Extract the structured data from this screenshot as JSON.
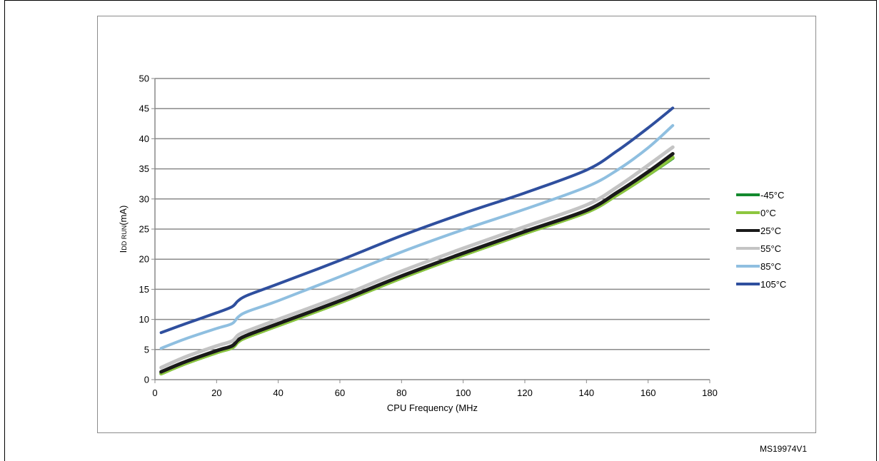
{
  "chart_data": {
    "type": "line",
    "xlabel": "CPU Frequency (MHz",
    "ylabel_main": "I",
    "ylabel_sub": "DD RUN",
    "ylabel_unit": "(mA)",
    "xlim": [
      0,
      180
    ],
    "ylim": [
      0,
      50
    ],
    "x_ticks": [
      0,
      20,
      40,
      60,
      80,
      100,
      120,
      140,
      160,
      180
    ],
    "y_ticks": [
      0,
      5,
      10,
      15,
      20,
      25,
      30,
      35,
      40,
      45,
      50
    ],
    "grid": true,
    "legend_position": "right",
    "series": [
      {
        "name": "-45°C",
        "color": "#138a2e",
        "width": 5,
        "points": [
          [
            2,
            1.0
          ],
          [
            10,
            2.7
          ],
          [
            20,
            4.5
          ],
          [
            25,
            5.3
          ],
          [
            27,
            6.3
          ],
          [
            30,
            7.1
          ],
          [
            40,
            9.0
          ],
          [
            60,
            12.8
          ],
          [
            80,
            16.9
          ],
          [
            100,
            20.7
          ],
          [
            120,
            24.3
          ],
          [
            140,
            27.8
          ],
          [
            150,
            30.7
          ],
          [
            160,
            34.0
          ],
          [
            168,
            36.8
          ]
        ]
      },
      {
        "name": "0°C",
        "color": "#8dc63f",
        "width": 5,
        "points": [
          [
            2,
            1.0
          ],
          [
            10,
            2.7
          ],
          [
            20,
            4.5
          ],
          [
            25,
            5.3
          ],
          [
            27,
            6.3
          ],
          [
            30,
            7.1
          ],
          [
            40,
            9.0
          ],
          [
            60,
            12.8
          ],
          [
            80,
            16.9
          ],
          [
            100,
            20.7
          ],
          [
            120,
            24.3
          ],
          [
            140,
            27.8
          ],
          [
            150,
            30.7
          ],
          [
            160,
            34.0
          ],
          [
            168,
            36.9
          ]
        ]
      },
      {
        "name": "25°C",
        "color": "#1a1a1a",
        "width": 5,
        "points": [
          [
            2,
            1.3
          ],
          [
            10,
            3.0
          ],
          [
            20,
            4.8
          ],
          [
            25,
            5.6
          ],
          [
            27,
            6.6
          ],
          [
            30,
            7.4
          ],
          [
            40,
            9.3
          ],
          [
            60,
            13.1
          ],
          [
            80,
            17.2
          ],
          [
            100,
            21.0
          ],
          [
            120,
            24.6
          ],
          [
            140,
            28.1
          ],
          [
            150,
            31.1
          ],
          [
            160,
            34.5
          ],
          [
            168,
            37.5
          ]
        ]
      },
      {
        "name": "55°C",
        "color": "#c4c4c4",
        "width": 5,
        "points": [
          [
            2,
            2.0
          ],
          [
            10,
            3.8
          ],
          [
            20,
            5.6
          ],
          [
            25,
            6.4
          ],
          [
            27,
            7.4
          ],
          [
            30,
            8.1
          ],
          [
            40,
            10.0
          ],
          [
            60,
            13.8
          ],
          [
            80,
            18.0
          ],
          [
            100,
            21.8
          ],
          [
            120,
            25.4
          ],
          [
            140,
            29.0
          ],
          [
            150,
            32.0
          ],
          [
            160,
            35.6
          ],
          [
            168,
            38.6
          ]
        ]
      },
      {
        "name": "85°C",
        "color": "#8fbfe0",
        "width": 4,
        "points": [
          [
            2,
            5.2
          ],
          [
            10,
            6.8
          ],
          [
            20,
            8.5
          ],
          [
            25,
            9.3
          ],
          [
            27,
            10.4
          ],
          [
            30,
            11.3
          ],
          [
            40,
            13.1
          ],
          [
            60,
            17.1
          ],
          [
            80,
            21.2
          ],
          [
            100,
            24.9
          ],
          [
            120,
            28.3
          ],
          [
            140,
            32.0
          ],
          [
            150,
            34.8
          ],
          [
            160,
            38.5
          ],
          [
            168,
            42.2
          ]
        ]
      },
      {
        "name": "105°C",
        "color": "#2f4f9e",
        "width": 4,
        "points": [
          [
            2,
            7.8
          ],
          [
            10,
            9.3
          ],
          [
            20,
            11.1
          ],
          [
            25,
            12.1
          ],
          [
            27,
            13.1
          ],
          [
            30,
            14.0
          ],
          [
            40,
            15.9
          ],
          [
            60,
            19.8
          ],
          [
            80,
            23.9
          ],
          [
            100,
            27.6
          ],
          [
            120,
            31.0
          ],
          [
            140,
            34.8
          ],
          [
            150,
            38.0
          ],
          [
            160,
            41.8
          ],
          [
            168,
            45.1
          ]
        ]
      }
    ]
  },
  "figure_id": "MS19974V1"
}
